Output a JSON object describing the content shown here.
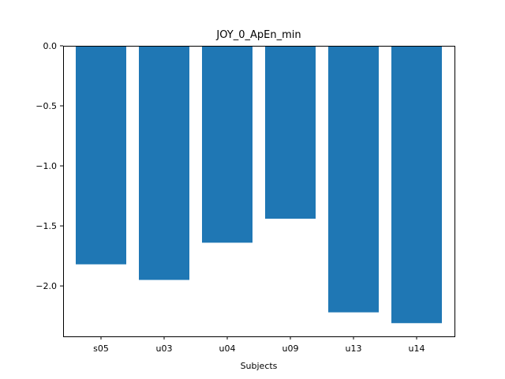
{
  "chart_data": {
    "type": "bar",
    "title": "JOY_0_ApEn_min",
    "xlabel": "Subjects",
    "ylabel": "",
    "categories": [
      "s05",
      "u03",
      "u04",
      "u09",
      "u13",
      "u14"
    ],
    "values": [
      -1.82,
      -1.95,
      -1.64,
      -1.44,
      -2.22,
      -2.31
    ],
    "ylim": [
      -2.42,
      0.0
    ],
    "yticks": [
      0.0,
      -0.5,
      -1.0,
      -1.5,
      -2.0
    ],
    "ytick_labels": [
      "0.0",
      "−0.5",
      "−1.0",
      "−1.5",
      "−2.0"
    ],
    "bar_color": "#1f77b4",
    "grid": false,
    "legend": "none"
  }
}
